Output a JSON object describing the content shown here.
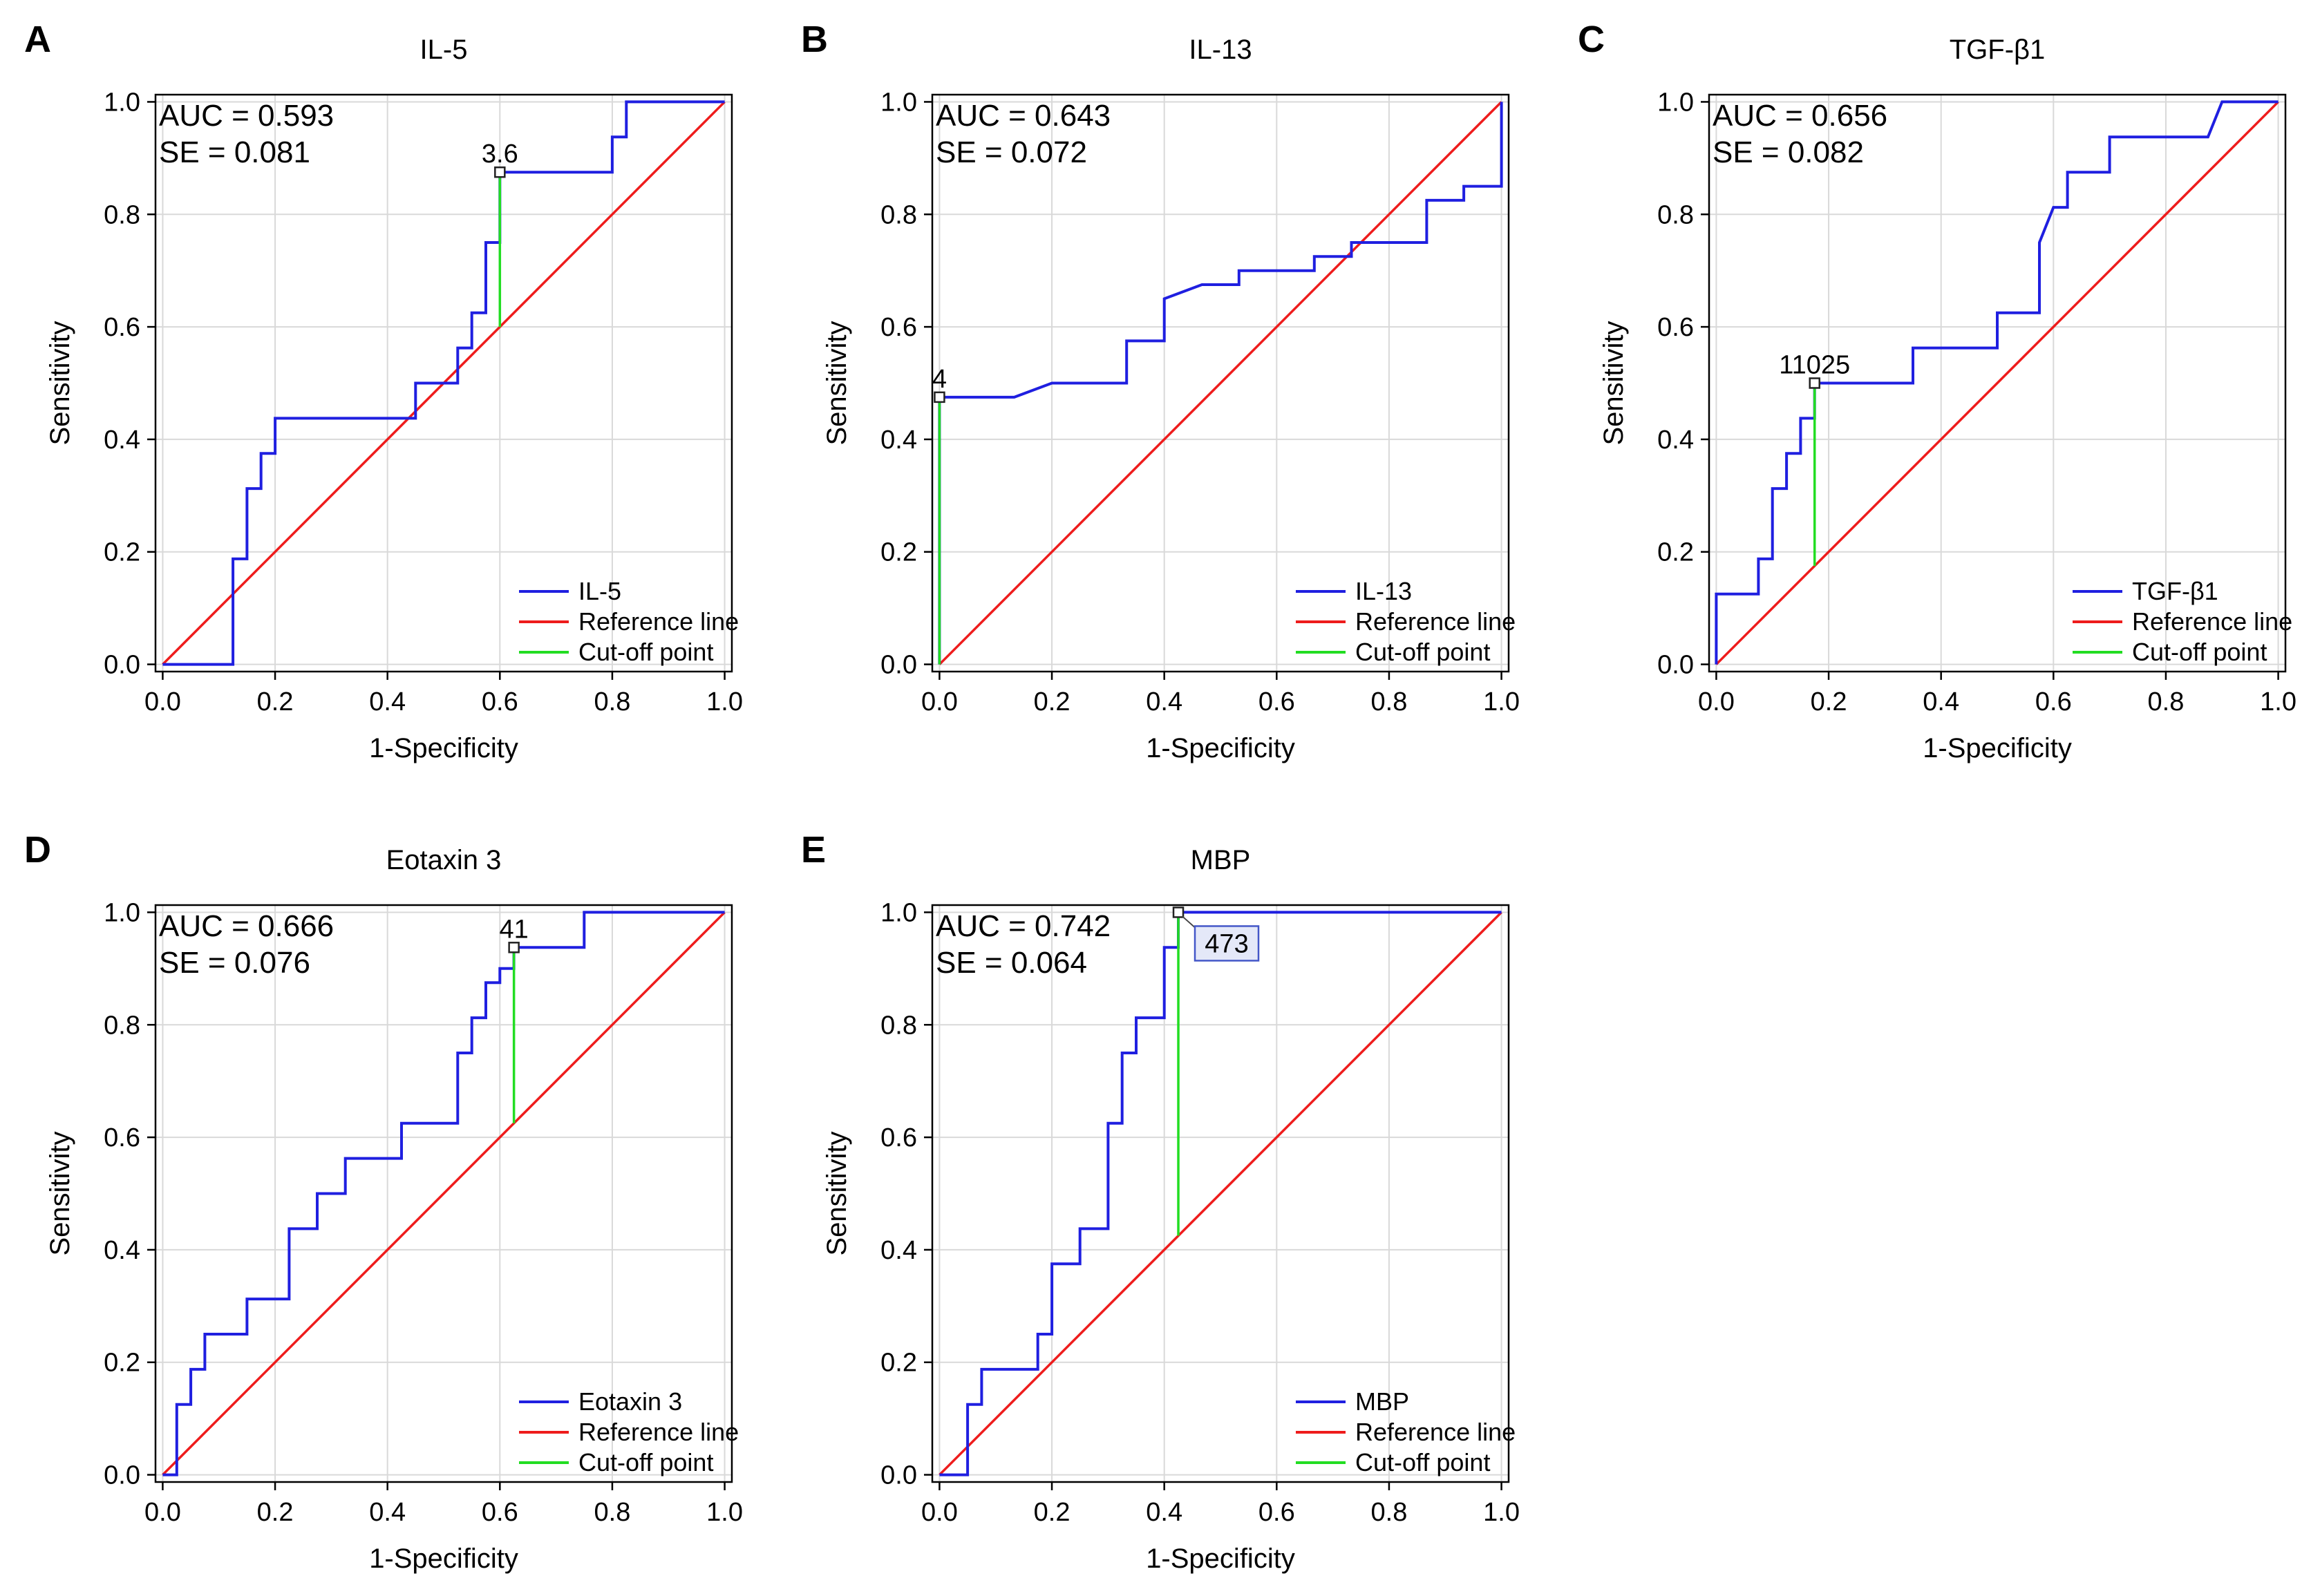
{
  "figure": {
    "name": "ROC curves"
  },
  "legend_labels": {
    "reference": "Reference line",
    "cutoff": "Cut-off point"
  },
  "colors": {
    "curve": "#1f1fe0",
    "reference": "#ee1c1c",
    "cutoff": "#22dd22",
    "grid": "#d9d9d9",
    "callout_fill": "#e4e8f8"
  },
  "chart_data": [
    {
      "panel": "A",
      "type": "line",
      "title": "IL-5",
      "xlabel": "1-Specificity",
      "ylabel": "Sensitivity",
      "xlim": [
        0,
        1
      ],
      "ylim": [
        0,
        1
      ],
      "xticks": [
        "0.0",
        "0.2",
        "0.4",
        "0.6",
        "0.8",
        "1.0"
      ],
      "yticks": [
        "0.0",
        "0.2",
        "0.4",
        "0.6",
        "0.8",
        "1.0"
      ],
      "auc_text": "AUC = 0.593",
      "se_text": "SE = 0.081",
      "legend_curve": "IL-5",
      "cutoff": {
        "label": "3.6",
        "x": 0.6,
        "y": 0.875,
        "style": "plain"
      },
      "x": [
        0,
        0.125,
        0.125,
        0.15,
        0.15,
        0.175,
        0.175,
        0.2,
        0.2,
        0.45,
        0.45,
        0.525,
        0.525,
        0.55,
        0.55,
        0.575,
        0.575,
        0.6,
        0.6,
        0.8,
        0.8,
        0.825,
        0.825,
        1.0
      ],
      "y": [
        0,
        0,
        0.1875,
        0.1875,
        0.3125,
        0.3125,
        0.375,
        0.375,
        0.4375,
        0.4375,
        0.5,
        0.5,
        0.5625,
        0.5625,
        0.625,
        0.625,
        0.75,
        0.75,
        0.875,
        0.875,
        0.9375,
        0.9375,
        1.0,
        1.0
      ]
    },
    {
      "panel": "B",
      "type": "line",
      "title": "IL-13",
      "xlabel": "1-Specificity",
      "ylabel": "Sensitivity",
      "xlim": [
        0,
        1
      ],
      "ylim": [
        0,
        1
      ],
      "xticks": [
        "0.0",
        "0.2",
        "0.4",
        "0.6",
        "0.8",
        "1.0"
      ],
      "yticks": [
        "0.0",
        "0.2",
        "0.4",
        "0.6",
        "0.8",
        "1.0"
      ],
      "auc_text": "AUC = 0.643",
      "se_text": "SE = 0.072",
      "legend_curve": "IL-13",
      "cutoff": {
        "label": "4",
        "x": 0.0,
        "y": 0.475,
        "style": "plain"
      },
      "x": [
        0,
        0,
        0.133,
        0.2,
        0.333,
        0.333,
        0.4,
        0.4,
        0.467,
        0.533,
        0.533,
        0.667,
        0.667,
        0.733,
        0.733,
        0.867,
        0.867,
        0.933,
        0.933,
        1.0,
        1.0
      ],
      "y": [
        0,
        0.475,
        0.475,
        0.5,
        0.5,
        0.575,
        0.575,
        0.65,
        0.675,
        0.675,
        0.7,
        0.7,
        0.725,
        0.725,
        0.75,
        0.75,
        0.825,
        0.825,
        0.85,
        0.85,
        1.0
      ]
    },
    {
      "panel": "C",
      "type": "line",
      "title": "TGF-β1",
      "xlabel": "1-Specificity",
      "ylabel": "Sensitivity",
      "xlim": [
        0,
        1
      ],
      "ylim": [
        0,
        1
      ],
      "xticks": [
        "0.0",
        "0.2",
        "0.4",
        "0.6",
        "0.8",
        "1.0"
      ],
      "yticks": [
        "0.0",
        "0.2",
        "0.4",
        "0.6",
        "0.8",
        "1.0"
      ],
      "auc_text": "AUC = 0.656",
      "se_text": "SE = 0.082",
      "legend_curve": "TGF-β1",
      "cutoff": {
        "label": "11025",
        "x": 0.175,
        "y": 0.5,
        "style": "plain"
      },
      "x": [
        0,
        0,
        0.075,
        0.075,
        0.1,
        0.1,
        0.125,
        0.125,
        0.15,
        0.15,
        0.175,
        0.175,
        0.35,
        0.35,
        0.5,
        0.5,
        0.575,
        0.575,
        0.6,
        0.6,
        0.625,
        0.625,
        0.7,
        0.7,
        0.875,
        0.9,
        1.0
      ],
      "y": [
        0,
        0.125,
        0.125,
        0.1875,
        0.1875,
        0.3125,
        0.3125,
        0.375,
        0.375,
        0.4375,
        0.4375,
        0.5,
        0.5,
        0.5625,
        0.5625,
        0.625,
        0.625,
        0.75,
        0.8125,
        0.8125,
        0.8125,
        0.875,
        0.875,
        0.9375,
        0.9375,
        1.0,
        1.0
      ]
    },
    {
      "panel": "D",
      "type": "line",
      "title": "Eotaxin 3",
      "xlabel": "1-Specificity",
      "ylabel": "Sensitivity",
      "xlim": [
        0,
        1
      ],
      "ylim": [
        0,
        1
      ],
      "xticks": [
        "0.0",
        "0.2",
        "0.4",
        "0.6",
        "0.8",
        "1.0"
      ],
      "yticks": [
        "0.0",
        "0.2",
        "0.4",
        "0.6",
        "0.8",
        "1.0"
      ],
      "auc_text": "AUC = 0.666",
      "se_text": "SE = 0.076",
      "legend_curve": "Eotaxin 3",
      "cutoff": {
        "label": "41",
        "x": 0.625,
        "y": 0.9375,
        "style": "plain"
      },
      "x": [
        0,
        0.025,
        0.025,
        0.05,
        0.05,
        0.075,
        0.075,
        0.15,
        0.15,
        0.225,
        0.225,
        0.275,
        0.275,
        0.325,
        0.325,
        0.425,
        0.425,
        0.525,
        0.525,
        0.55,
        0.55,
        0.575,
        0.575,
        0.6,
        0.6,
        0.625,
        0.625,
        0.75,
        0.75,
        1.0
      ],
      "y": [
        0,
        0,
        0.125,
        0.125,
        0.1875,
        0.1875,
        0.25,
        0.25,
        0.3125,
        0.3125,
        0.4375,
        0.4375,
        0.5,
        0.5,
        0.5625,
        0.5625,
        0.625,
        0.625,
        0.75,
        0.75,
        0.8125,
        0.8125,
        0.875,
        0.875,
        0.9,
        0.9,
        0.9375,
        0.9375,
        1.0,
        1.0
      ]
    },
    {
      "panel": "E",
      "type": "line",
      "title": "MBP",
      "xlabel": "1-Specificity",
      "ylabel": "Sensitivity",
      "xlim": [
        0,
        1
      ],
      "ylim": [
        0,
        1
      ],
      "xticks": [
        "0.0",
        "0.2",
        "0.4",
        "0.6",
        "0.8",
        "1.0"
      ],
      "yticks": [
        "0.0",
        "0.2",
        "0.4",
        "0.6",
        "0.8",
        "1.0"
      ],
      "auc_text": "AUC = 0.742",
      "se_text": "SE = 0.064",
      "legend_curve": "MBP",
      "cutoff": {
        "label": "473",
        "x": 0.425,
        "y": 1.0,
        "style": "boxed"
      },
      "x": [
        0,
        0.05,
        0.05,
        0.075,
        0.075,
        0.175,
        0.175,
        0.2,
        0.2,
        0.25,
        0.25,
        0.3,
        0.3,
        0.325,
        0.325,
        0.35,
        0.35,
        0.4,
        0.4,
        0.425,
        0.425,
        1.0
      ],
      "y": [
        0,
        0,
        0.125,
        0.125,
        0.1875,
        0.1875,
        0.25,
        0.25,
        0.375,
        0.375,
        0.4375,
        0.4375,
        0.625,
        0.625,
        0.75,
        0.75,
        0.8125,
        0.8125,
        0.9375,
        0.9375,
        1.0,
        1.0
      ]
    }
  ]
}
